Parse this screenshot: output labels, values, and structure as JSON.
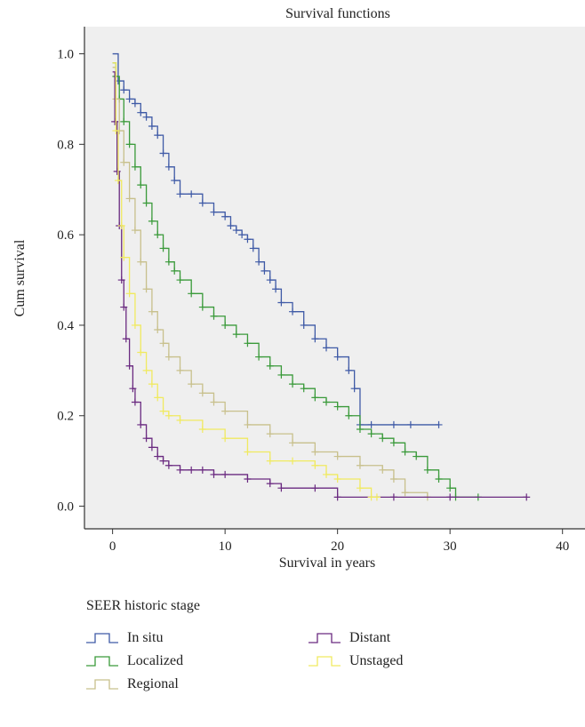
{
  "chart_data": {
    "type": "line",
    "title": "Survival functions",
    "xlabel": "Survival in years",
    "ylabel": "Cum survival",
    "xlim": [
      -2.5,
      42
    ],
    "ylim": [
      -0.05,
      1.06
    ],
    "xticks": [
      0,
      10,
      20,
      30,
      40
    ],
    "yticks": [
      0.0,
      0.2,
      0.4,
      0.6,
      0.8,
      1.0
    ],
    "xtick_labels": [
      "0",
      "10",
      "20",
      "30",
      "40"
    ],
    "ytick_labels": [
      "0.0",
      "0.2",
      "0.4",
      "0.6",
      "0.8",
      "1.0"
    ],
    "step": true,
    "grid": false,
    "legend_title": "SEER historic stage",
    "legend_position": "bottom",
    "series": [
      {
        "name": "In situ",
        "color": "#3f5aa6",
        "x": [
          0,
          0.5,
          1,
          1.5,
          2,
          2.5,
          3,
          3.5,
          4,
          4.5,
          5,
          5.5,
          6,
          7,
          8,
          9,
          10,
          10.5,
          11,
          11.5,
          12,
          12.5,
          13,
          13.5,
          14,
          14.5,
          15,
          16,
          17,
          18,
          19,
          20,
          21,
          21.5,
          22,
          23,
          25,
          26.5,
          29
        ],
        "y": [
          1.0,
          0.94,
          0.92,
          0.9,
          0.89,
          0.87,
          0.86,
          0.84,
          0.82,
          0.78,
          0.75,
          0.72,
          0.69,
          0.69,
          0.67,
          0.65,
          0.64,
          0.62,
          0.61,
          0.6,
          0.59,
          0.57,
          0.54,
          0.52,
          0.5,
          0.48,
          0.45,
          0.43,
          0.4,
          0.37,
          0.35,
          0.33,
          0.3,
          0.26,
          0.18,
          0.18,
          0.18,
          0.18,
          0.18
        ]
      },
      {
        "name": "Localized",
        "color": "#3a9a3a",
        "x": [
          0,
          0.3,
          0.6,
          1,
          1.5,
          2,
          2.5,
          3,
          3.5,
          4,
          4.5,
          5,
          5.5,
          6,
          7,
          8,
          9,
          10,
          11,
          12,
          13,
          14,
          15,
          16,
          17,
          18,
          19,
          20,
          21,
          22,
          23,
          24,
          25,
          26,
          27,
          28,
          29,
          30,
          30.5,
          32.5
        ],
        "y": [
          0.98,
          0.95,
          0.9,
          0.85,
          0.8,
          0.75,
          0.71,
          0.67,
          0.63,
          0.6,
          0.57,
          0.54,
          0.52,
          0.5,
          0.47,
          0.44,
          0.42,
          0.4,
          0.38,
          0.36,
          0.33,
          0.31,
          0.29,
          0.27,
          0.26,
          0.24,
          0.23,
          0.22,
          0.2,
          0.17,
          0.16,
          0.15,
          0.14,
          0.12,
          0.11,
          0.08,
          0.06,
          0.04,
          0.02,
          0.02
        ]
      },
      {
        "name": "Regional",
        "color": "#c8c08c",
        "x": [
          0,
          0.3,
          0.6,
          1,
          1.5,
          2,
          2.5,
          3,
          3.5,
          4,
          4.5,
          5,
          6,
          7,
          8,
          9,
          10,
          12,
          14,
          16,
          18,
          20,
          22,
          24,
          25,
          26,
          28
        ],
        "y": [
          0.97,
          0.9,
          0.83,
          0.76,
          0.68,
          0.61,
          0.54,
          0.48,
          0.43,
          0.39,
          0.36,
          0.33,
          0.3,
          0.27,
          0.25,
          0.23,
          0.21,
          0.18,
          0.16,
          0.14,
          0.12,
          0.11,
          0.09,
          0.08,
          0.06,
          0.03,
          0.02
        ]
      },
      {
        "name": "Distant",
        "color": "#6a2a80",
        "x": [
          0,
          0.2,
          0.4,
          0.6,
          0.8,
          1,
          1.2,
          1.5,
          1.8,
          2,
          2.5,
          3,
          3.5,
          4,
          4.5,
          5,
          6,
          7,
          8,
          9,
          10,
          12,
          14,
          15,
          18,
          20,
          25,
          30,
          36.8
        ],
        "y": [
          0.96,
          0.85,
          0.74,
          0.62,
          0.5,
          0.44,
          0.37,
          0.31,
          0.26,
          0.23,
          0.18,
          0.15,
          0.13,
          0.11,
          0.1,
          0.09,
          0.08,
          0.08,
          0.08,
          0.07,
          0.07,
          0.06,
          0.05,
          0.04,
          0.04,
          0.02,
          0.02,
          0.02,
          0.02
        ]
      },
      {
        "name": "Unstaged",
        "color": "#f0ea60",
        "x": [
          0,
          0.3,
          0.5,
          0.8,
          1,
          1.5,
          2,
          2.5,
          3,
          3.5,
          4,
          4.5,
          5,
          6,
          8,
          10,
          12,
          14,
          16,
          18,
          19,
          20,
          22,
          23,
          23.5
        ],
        "y": [
          0.98,
          0.83,
          0.72,
          0.62,
          0.55,
          0.47,
          0.4,
          0.34,
          0.3,
          0.27,
          0.24,
          0.21,
          0.2,
          0.19,
          0.17,
          0.15,
          0.12,
          0.1,
          0.1,
          0.09,
          0.07,
          0.06,
          0.04,
          0.02,
          0.02
        ]
      }
    ]
  }
}
